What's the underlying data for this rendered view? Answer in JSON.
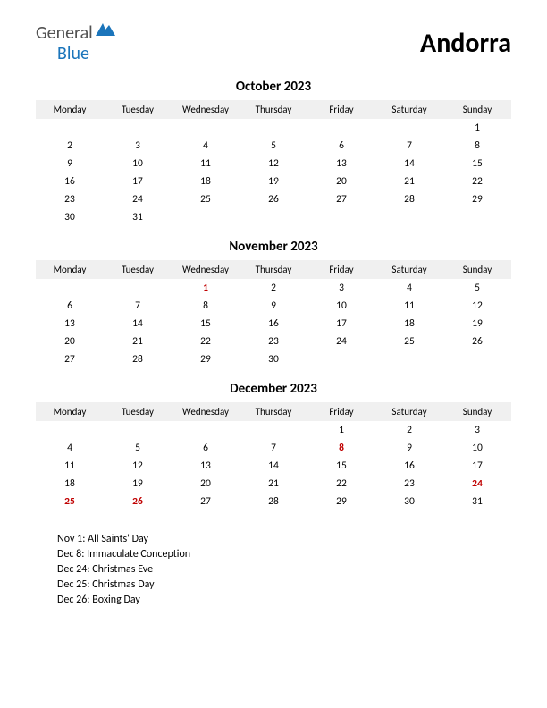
{
  "logo": {
    "general": "General",
    "blue": "Blue"
  },
  "country": "Andorra",
  "weekdays": [
    "Monday",
    "Tuesday",
    "Wednesday",
    "Thursday",
    "Friday",
    "Saturday",
    "Sunday"
  ],
  "colors": {
    "background": "#ffffff",
    "text": "#000000",
    "header_bg": "#f0f0f0",
    "holiday": "#c00000",
    "logo_general": "#525252",
    "logo_blue": "#1b75bb"
  },
  "fontsize": {
    "country": 30,
    "month_title": 15,
    "weekday": 11,
    "day": 11.5,
    "holiday_list": 12
  },
  "months": [
    {
      "title": "October 2023",
      "weeks": [
        [
          "",
          "",
          "",
          "",
          "",
          "",
          "1"
        ],
        [
          "2",
          "3",
          "4",
          "5",
          "6",
          "7",
          "8"
        ],
        [
          "9",
          "10",
          "11",
          "12",
          "13",
          "14",
          "15"
        ],
        [
          "16",
          "17",
          "18",
          "19",
          "20",
          "21",
          "22"
        ],
        [
          "23",
          "24",
          "25",
          "26",
          "27",
          "28",
          "29"
        ],
        [
          "30",
          "31",
          "",
          "",
          "",
          "",
          ""
        ]
      ],
      "holidays": []
    },
    {
      "title": "November 2023",
      "weeks": [
        [
          "",
          "",
          "1",
          "2",
          "3",
          "4",
          "5"
        ],
        [
          "6",
          "7",
          "8",
          "9",
          "10",
          "11",
          "12"
        ],
        [
          "13",
          "14",
          "15",
          "16",
          "17",
          "18",
          "19"
        ],
        [
          "20",
          "21",
          "22",
          "23",
          "24",
          "25",
          "26"
        ],
        [
          "27",
          "28",
          "29",
          "30",
          "",
          "",
          ""
        ]
      ],
      "holidays": [
        "1"
      ]
    },
    {
      "title": "December 2023",
      "weeks": [
        [
          "",
          "",
          "",
          "",
          "1",
          "2",
          "3"
        ],
        [
          "4",
          "5",
          "6",
          "7",
          "8",
          "9",
          "10"
        ],
        [
          "11",
          "12",
          "13",
          "14",
          "15",
          "16",
          "17"
        ],
        [
          "18",
          "19",
          "20",
          "21",
          "22",
          "23",
          "24"
        ],
        [
          "25",
          "26",
          "27",
          "28",
          "29",
          "30",
          "31"
        ]
      ],
      "holidays": [
        "8",
        "24",
        "25",
        "26"
      ]
    }
  ],
  "holiday_list": [
    "Nov 1: All Saints' Day",
    "Dec 8: Immaculate Conception",
    "Dec 24: Christmas Eve",
    "Dec 25: Christmas Day",
    "Dec 26: Boxing Day"
  ]
}
